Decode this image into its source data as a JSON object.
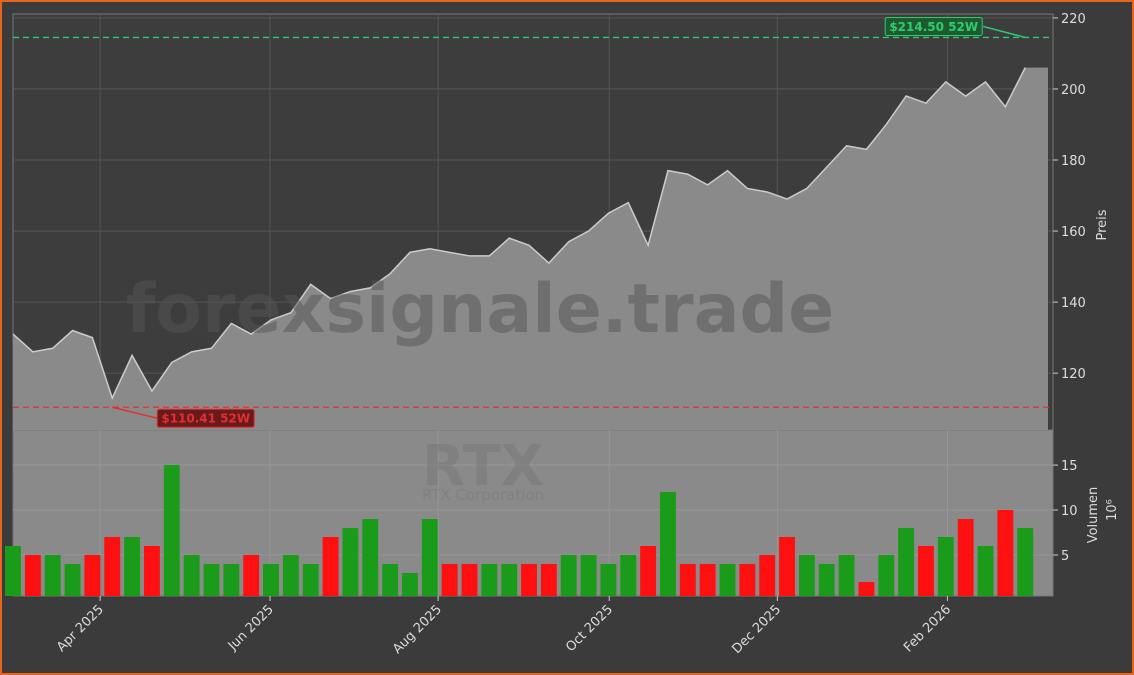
{
  "chart_data": {
    "type": "area",
    "ticker": "RTX",
    "company": "RTX Corporation",
    "watermark": "forexsignale.trade",
    "ylabel": "Preis",
    "y2label": "Volumen",
    "y2unit": "10⁶",
    "x": [
      0,
      1,
      2,
      3,
      4,
      5,
      6,
      7,
      8,
      9,
      10,
      11,
      12,
      13,
      14,
      15,
      16,
      17,
      18,
      19,
      20,
      21,
      22,
      23,
      24,
      25,
      26,
      27,
      28,
      29,
      30,
      31,
      32,
      33,
      34,
      35,
      36,
      37,
      38,
      39,
      40,
      41,
      42,
      43,
      44,
      45,
      46,
      47,
      48,
      49,
      50,
      51
    ],
    "xlim": [
      0,
      52.4
    ],
    "xticks": [
      {
        "value": 4.39,
        "label": "Apr 2025"
      },
      {
        "value": 12.95,
        "label": "Jun 2025"
      },
      {
        "value": 21.42,
        "label": "Aug 2025"
      },
      {
        "value": 30.04,
        "label": "Oct 2025"
      },
      {
        "value": 38.51,
        "label": "Dec 2025"
      },
      {
        "value": 47.08,
        "label": "Feb 2026"
      }
    ],
    "series": [
      {
        "name": "Preis",
        "color": "#cccccc",
        "fill": "#8a8a8a",
        "values": [
          131,
          126,
          127,
          132,
          130,
          113,
          125,
          115,
          123,
          126,
          127,
          134,
          131,
          135,
          137,
          145,
          141,
          143,
          144,
          148,
          154,
          155,
          154,
          153,
          153,
          158,
          156,
          151,
          157,
          160,
          165,
          168,
          156,
          177,
          176,
          173,
          177,
          172,
          171,
          169,
          172,
          178,
          184,
          183,
          190,
          198,
          196,
          202,
          198,
          202,
          195,
          206
        ]
      },
      {
        "name": "Volumen",
        "axis": "y2",
        "up_color": "#1a9c1a",
        "down_color": "#ff1010",
        "values": [
          6,
          5,
          5,
          4,
          5,
          7,
          7,
          6,
          15,
          5,
          4,
          4,
          5,
          4,
          5,
          4,
          7,
          8,
          9,
          4,
          3,
          9,
          4,
          4,
          4,
          4,
          4,
          4,
          5,
          5,
          4,
          5,
          6,
          12,
          4,
          4,
          4,
          4,
          5,
          7,
          5,
          4,
          5,
          2,
          5,
          8,
          6,
          7,
          9,
          6,
          10,
          8
        ]
      }
    ],
    "ylim": [
      104,
      221.1
    ],
    "yticks": [
      120,
      140,
      160,
      180,
      200,
      220
    ],
    "y2lim": [
      0.44,
      18.9
    ],
    "y2ticks": [
      5,
      10,
      15
    ],
    "annotations": [
      {
        "value": 214.5,
        "label": "$214.50 52W",
        "color": "#2ecc71",
        "index": 51
      },
      {
        "value": 110.41,
        "label": "$110.41 52W",
        "color": "#e03030",
        "index": 5
      }
    ],
    "grid": true
  }
}
